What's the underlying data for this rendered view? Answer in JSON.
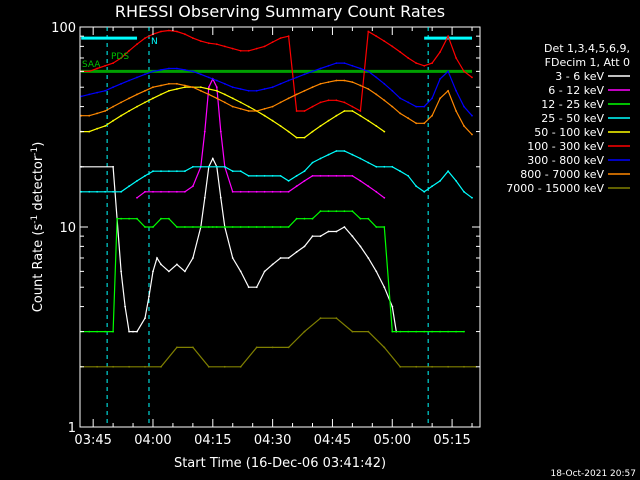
{
  "chart_data": {
    "type": "line",
    "title": "RHESSI Observing Summary Count Rates",
    "xlabel": "Start Time (16-Dec-06 03:41:42)",
    "ylabel": "Count Rate (s",
    "ylabel_sup": "-1",
    "ylabel_tail": " detector",
    "ylabel_sup2": "-1",
    "ylabel_end": ")",
    "x_tick_labels": [
      "03:45",
      "04:00",
      "04:15",
      "04:30",
      "04:45",
      "05:00",
      "05:15"
    ],
    "x_tick_minutes": [
      225,
      240,
      255,
      270,
      285,
      300,
      315
    ],
    "xlim_minutes": [
      221.7,
      322
    ],
    "y_scale": "log",
    "ylim": [
      1,
      100
    ],
    "y_tick_labels": [
      "1",
      "10",
      "100"
    ],
    "y_tick_values": [
      1,
      10,
      100
    ],
    "legend_header": [
      "Det 1,3,4,5,6,9,",
      "FDecim 1, Att 0"
    ],
    "legend_placement": "right",
    "annotations": [
      "SAA",
      "N",
      "PDS"
    ],
    "footer_date": "18-Oct-2021 20:57",
    "grid": false,
    "series": [
      {
        "name": "3 - 6 keV",
        "color": "#ffffff",
        "x": [
          222,
          230,
          232,
          233,
          234,
          235,
          236,
          238,
          239,
          240,
          241,
          242,
          244,
          246,
          248,
          250,
          252,
          253,
          254,
          255,
          256,
          257,
          258,
          260,
          262,
          264,
          266,
          268,
          270,
          272,
          274,
          276,
          278,
          280,
          282,
          284,
          286,
          288,
          290,
          292,
          294,
          296,
          298,
          300,
          301
        ],
        "y": [
          20,
          20,
          6,
          4,
          3,
          3,
          3,
          3.5,
          4.5,
          6,
          7,
          6.5,
          6,
          6.5,
          6,
          7,
          10,
          14,
          20,
          22,
          20,
          14,
          10,
          7,
          6,
          5,
          5,
          6,
          6.5,
          7,
          7,
          7.5,
          8,
          9,
          9,
          9.5,
          9.5,
          10,
          9,
          8,
          7,
          6,
          5,
          4,
          3
        ]
      },
      {
        "name": "6 - 12 keV",
        "color": "#ff00ff",
        "x": [
          236,
          238,
          240,
          242,
          244,
          246,
          248,
          250,
          252,
          253,
          254,
          255,
          256,
          257,
          258,
          260,
          262,
          264,
          266,
          268,
          270,
          272,
          274,
          276,
          278,
          280,
          282,
          284,
          286,
          288,
          290,
          292,
          294,
          296,
          298
        ],
        "y": [
          14,
          15,
          15,
          15,
          15,
          15,
          15,
          16,
          20,
          30,
          50,
          55,
          50,
          30,
          20,
          15,
          15,
          15,
          15,
          15,
          15,
          15,
          15,
          16,
          17,
          18,
          18,
          18,
          18,
          18,
          18,
          17,
          16,
          15,
          14
        ]
      },
      {
        "name": "12 - 25 keV",
        "color": "#00ff00",
        "x": [
          222,
          224,
          226,
          228,
          230,
          231,
          232,
          234,
          236,
          238,
          240,
          242,
          244,
          246,
          248,
          250,
          252,
          254,
          255,
          256,
          258,
          260,
          262,
          264,
          266,
          268,
          270,
          272,
          274,
          276,
          278,
          280,
          282,
          284,
          286,
          288,
          290,
          292,
          294,
          296,
          298,
          300,
          302,
          304,
          306,
          308,
          310,
          312,
          314,
          316,
          318
        ],
        "y": [
          3,
          3,
          3,
          3,
          3,
          11,
          11,
          11,
          11,
          10,
          10,
          11,
          11,
          10,
          10,
          10,
          10,
          10,
          10,
          10,
          10,
          10,
          10,
          10,
          10,
          10,
          10,
          10,
          10,
          11,
          11,
          11,
          12,
          12,
          12,
          12,
          12,
          11,
          11,
          10,
          10,
          3,
          3,
          3,
          3,
          3,
          3,
          3,
          3,
          3,
          3
        ]
      },
      {
        "name": "25 - 50 keV",
        "color": "#00ffff",
        "x": [
          222,
          224,
          226,
          228,
          230,
          232,
          234,
          236,
          238,
          240,
          242,
          244,
          246,
          248,
          250,
          252,
          254,
          256,
          258,
          260,
          262,
          264,
          266,
          268,
          270,
          272,
          274,
          276,
          278,
          280,
          282,
          284,
          286,
          288,
          290,
          292,
          294,
          296,
          298,
          300,
          302,
          304,
          306,
          308,
          310,
          312,
          314,
          316,
          318,
          320
        ],
        "y": [
          15,
          15,
          15,
          15,
          15,
          15,
          16,
          17,
          18,
          19,
          19,
          19,
          19,
          19,
          20,
          20,
          20,
          20,
          20,
          19,
          19,
          18,
          18,
          18,
          18,
          18,
          17,
          18,
          19,
          21,
          22,
          23,
          24,
          24,
          23,
          22,
          21,
          20,
          20,
          20,
          19,
          18,
          16,
          15,
          16,
          17,
          19,
          17,
          15,
          14
        ]
      },
      {
        "name": "50 - 100 keV",
        "color": "#ffff00",
        "x": [
          222,
          224,
          226,
          228,
          230,
          232,
          234,
          236,
          238,
          240,
          242,
          244,
          246,
          248,
          250,
          252,
          254,
          256,
          258,
          260,
          262,
          264,
          266,
          268,
          270,
          272,
          274,
          276,
          278,
          280,
          282,
          284,
          286,
          288,
          290,
          292,
          294,
          296,
          298
        ],
        "y": [
          30,
          30,
          31,
          32,
          34,
          36,
          38,
          40,
          42,
          44,
          46,
          48,
          49,
          50,
          50,
          50,
          49,
          48,
          46,
          44,
          42,
          40,
          38,
          36,
          34,
          32,
          30,
          28,
          28,
          30,
          32,
          34,
          36,
          38,
          38,
          36,
          34,
          32,
          30
        ]
      },
      {
        "name": "100 - 300 keV",
        "color": "#ff0000",
        "x": [
          222,
          224,
          226,
          228,
          230,
          232,
          234,
          236,
          238,
          240,
          242,
          244,
          246,
          248,
          250,
          252,
          254,
          256,
          258,
          260,
          262,
          264,
          266,
          268,
          270,
          272,
          274,
          276,
          278,
          280,
          282,
          284,
          286,
          288,
          290,
          292,
          294,
          296,
          298,
          300,
          302,
          304,
          306,
          308,
          310,
          312,
          314,
          316,
          318,
          320
        ],
        "y": [
          60,
          60,
          62,
          64,
          66,
          70,
          76,
          82,
          88,
          92,
          95,
          96,
          95,
          92,
          88,
          85,
          83,
          82,
          80,
          78,
          76,
          76,
          78,
          80,
          84,
          88,
          90,
          38,
          38,
          40,
          42,
          43,
          43,
          42,
          40,
          38,
          95,
          90,
          85,
          80,
          75,
          70,
          66,
          64,
          66,
          75,
          90,
          70,
          60,
          56
        ]
      },
      {
        "name": "300 - 800 keV",
        "color": "#0000ff",
        "x": [
          222,
          224,
          226,
          228,
          230,
          232,
          234,
          236,
          238,
          240,
          242,
          244,
          246,
          248,
          250,
          252,
          254,
          256,
          258,
          260,
          262,
          264,
          266,
          268,
          270,
          272,
          274,
          276,
          278,
          280,
          282,
          284,
          286,
          288,
          290,
          292,
          294,
          296,
          298,
          300,
          302,
          304,
          306,
          308,
          310,
          312,
          314,
          316,
          318,
          320
        ],
        "y": [
          45,
          46,
          47,
          48,
          50,
          52,
          54,
          56,
          58,
          60,
          61,
          62,
          62,
          61,
          60,
          58,
          56,
          54,
          52,
          50,
          49,
          48,
          48,
          49,
          50,
          52,
          54,
          56,
          58,
          60,
          62,
          64,
          66,
          66,
          64,
          62,
          60,
          56,
          52,
          48,
          44,
          42,
          40,
          40,
          44,
          55,
          60,
          48,
          40,
          36
        ]
      },
      {
        "name": "800 - 7000 keV",
        "color": "#ff8800",
        "x": [
          222,
          224,
          226,
          228,
          230,
          232,
          234,
          236,
          238,
          240,
          242,
          244,
          246,
          248,
          250,
          252,
          254,
          256,
          258,
          260,
          262,
          264,
          266,
          268,
          270,
          272,
          274,
          276,
          278,
          280,
          282,
          284,
          286,
          288,
          290,
          292,
          294,
          296,
          298,
          300,
          302,
          304,
          306,
          308,
          310,
          312,
          314,
          316,
          318,
          320
        ],
        "y": [
          36,
          36,
          37,
          38,
          40,
          42,
          44,
          46,
          48,
          50,
          51,
          52,
          52,
          51,
          50,
          48,
          46,
          44,
          42,
          40,
          39,
          38,
          38,
          39,
          40,
          42,
          44,
          46,
          48,
          50,
          52,
          53,
          54,
          54,
          53,
          51,
          49,
          46,
          43,
          40,
          37,
          35,
          33,
          33,
          36,
          44,
          48,
          38,
          32,
          29
        ]
      },
      {
        "name": "7000 - 15000 keV",
        "color": "#808000",
        "x": [
          222,
          226,
          230,
          234,
          238,
          242,
          246,
          250,
          254,
          258,
          262,
          266,
          270,
          274,
          278,
          282,
          286,
          290,
          294,
          298,
          302,
          306,
          310,
          314,
          318,
          321
        ],
        "y": [
          2,
          2,
          2,
          2,
          2,
          2,
          2.5,
          2.5,
          2,
          2,
          2,
          2.5,
          2.5,
          2.5,
          3,
          3.5,
          3.5,
          3,
          3,
          2.5,
          2,
          2,
          2,
          2,
          2,
          2
        ]
      }
    ]
  }
}
